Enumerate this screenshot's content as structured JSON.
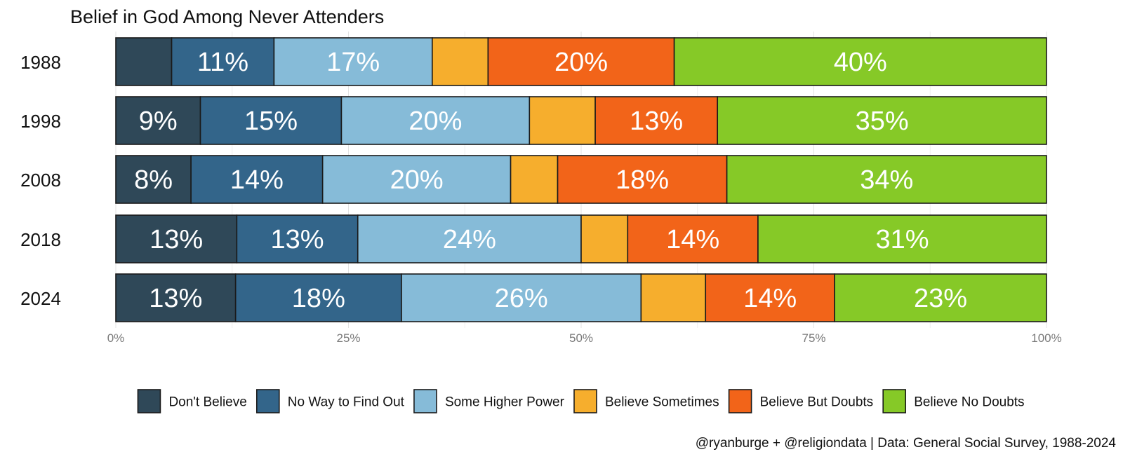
{
  "chart_data": {
    "type": "bar",
    "orientation": "horizontal-stacked-percent",
    "title": "Belief in God Among Never Attenders",
    "categories": [
      "1988",
      "1998",
      "2008",
      "2018",
      "2024"
    ],
    "series": [
      {
        "name": "Don't Believe",
        "color": "#2f4858",
        "values": [
          6,
          9,
          8,
          13,
          13
        ],
        "labels": [
          "",
          "9%",
          "8%",
          "13%",
          "13%"
        ]
      },
      {
        "name": "No Way to Find Out",
        "color": "#33658a",
        "values": [
          11,
          15,
          14,
          13,
          18
        ],
        "labels": [
          "11%",
          "15%",
          "14%",
          "13%",
          "18%"
        ]
      },
      {
        "name": "Some Higher Power",
        "color": "#86bbd8",
        "values": [
          17,
          20,
          20,
          24,
          26
        ],
        "labels": [
          "17%",
          "20%",
          "20%",
          "24%",
          "26%"
        ]
      },
      {
        "name": "Believe Sometimes",
        "color": "#f6ae2d",
        "values": [
          6,
          7,
          5,
          5,
          7
        ],
        "labels": [
          "",
          "",
          "",
          "",
          ""
        ]
      },
      {
        "name": "Believe But Doubts",
        "color": "#f26419",
        "values": [
          20,
          13,
          18,
          14,
          14
        ],
        "labels": [
          "20%",
          "13%",
          "18%",
          "14%",
          "14%"
        ]
      },
      {
        "name": "Believe No Doubts",
        "color": "#86c927",
        "values": [
          40,
          35,
          34,
          31,
          23
        ],
        "labels": [
          "40%",
          "35%",
          "34%",
          "31%",
          "23%"
        ]
      }
    ],
    "xlim": [
      0,
      100
    ],
    "xticks": [
      {
        "value": 0,
        "label": "0%"
      },
      {
        "value": 25,
        "label": "25%"
      },
      {
        "value": 50,
        "label": "50%"
      },
      {
        "value": 75,
        "label": "75%"
      },
      {
        "value": 100,
        "label": "100%"
      }
    ],
    "grid": true,
    "legend_position": "bottom",
    "caption": "@ryanburge + @religiondata | Data: General Social Survey, 1988-2024"
  }
}
